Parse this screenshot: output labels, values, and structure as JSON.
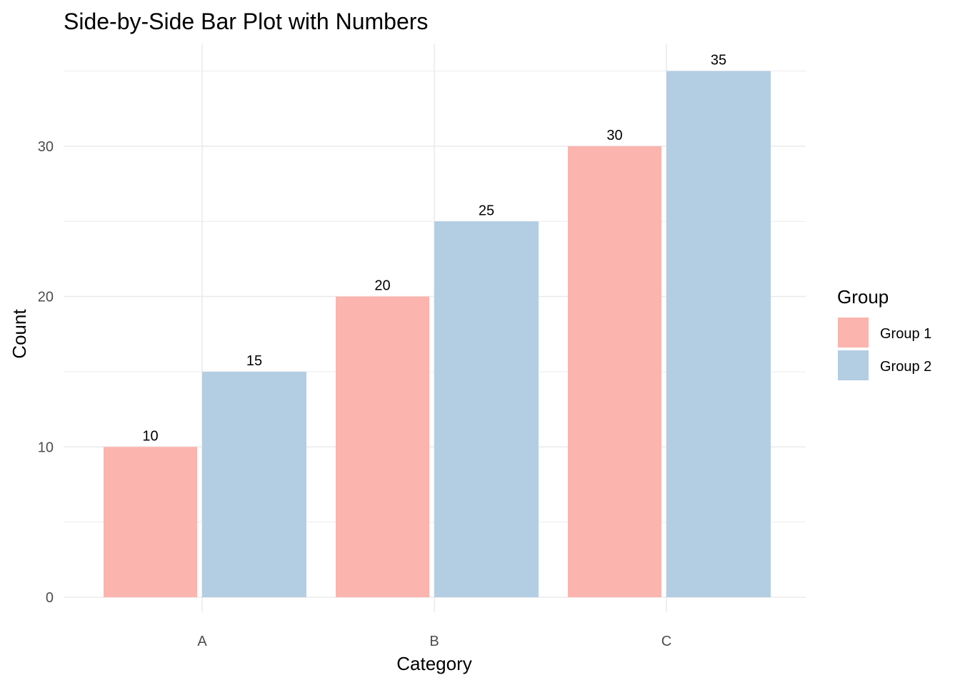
{
  "chart_data": {
    "type": "bar",
    "title": "Side-by-Side Bar Plot with Numbers",
    "xlabel": "Category",
    "ylabel": "Count",
    "categories": [
      "A",
      "B",
      "C"
    ],
    "series": [
      {
        "name": "Group 1",
        "values": [
          10,
          20,
          30
        ],
        "color": "#FBB4AE"
      },
      {
        "name": "Group 2",
        "values": [
          15,
          25,
          35
        ],
        "color": "#B3CDE3"
      }
    ],
    "ylim": [
      0,
      35
    ],
    "yticks": [
      "0",
      "10",
      "20",
      "30"
    ],
    "data_labels": [
      [
        "10",
        "20",
        "30"
      ],
      [
        "15",
        "25",
        "35"
      ]
    ],
    "legend": {
      "title": "Group",
      "position": "right"
    },
    "grid": true,
    "grid_color": "#EBEBEB"
  }
}
